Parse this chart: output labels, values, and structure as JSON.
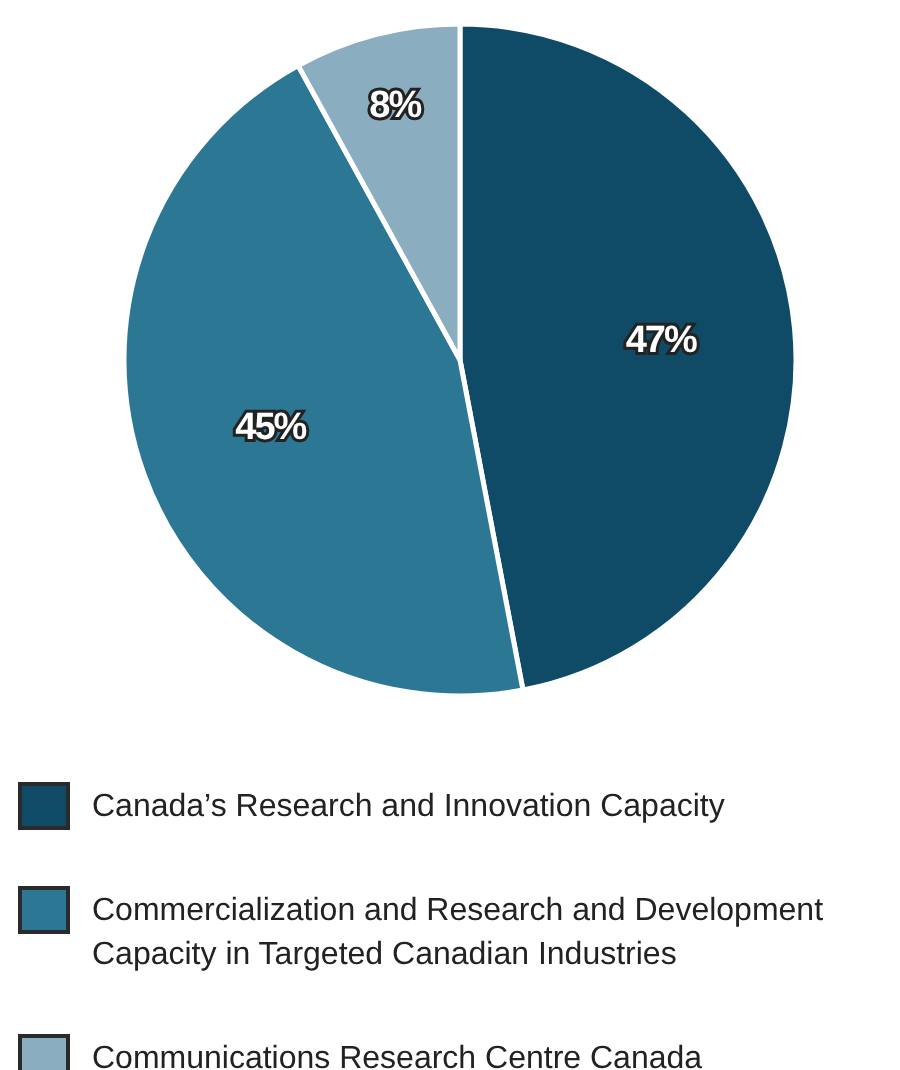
{
  "chart_data": {
    "type": "pie",
    "categories": [
      "Canada’s Research and Innovation Capacity",
      "Commercialization and Research and Development Capacity in Targeted Canadian Industries",
      "Communications Research Centre Canada"
    ],
    "values": [
      47,
      45,
      8
    ],
    "value_labels": [
      "47%",
      "45%",
      "8%"
    ],
    "colors": [
      "#0f4b67",
      "#2b7794",
      "#8badc0"
    ],
    "legend": "bottom"
  }
}
